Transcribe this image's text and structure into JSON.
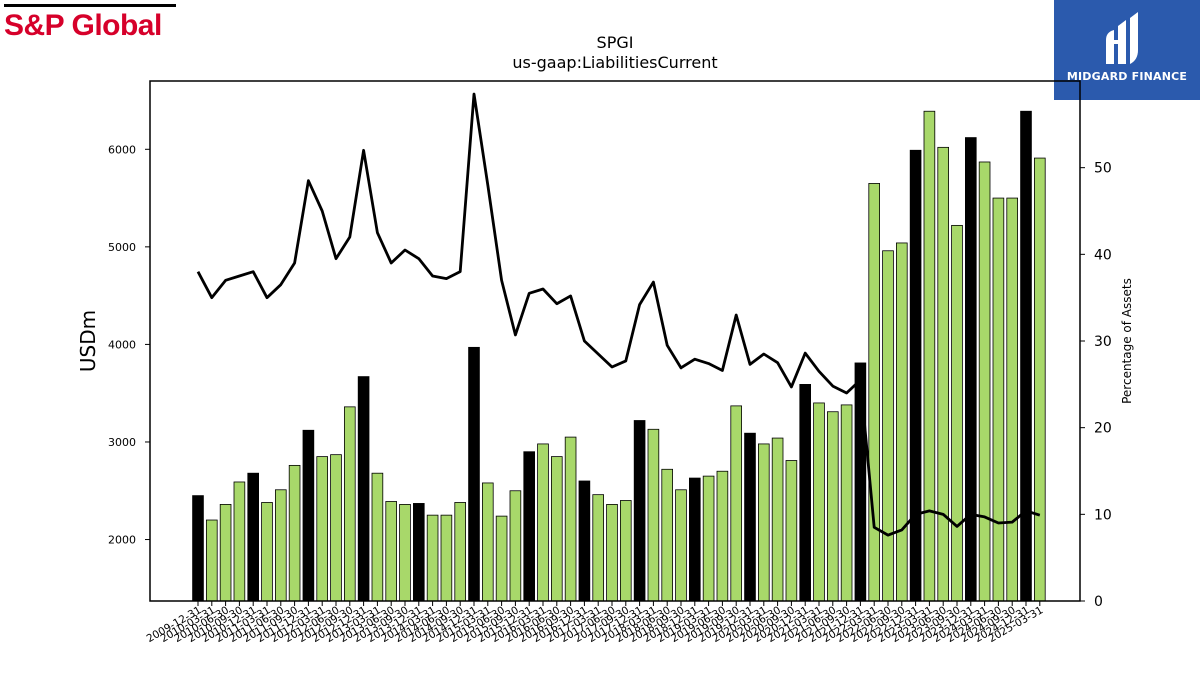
{
  "branding": {
    "left_logo_text": "S&P Global",
    "right_logo_text": "MIDGARD FINANCE",
    "left_logo_color": "#d6002a",
    "right_logo_bg": "#2b5aad"
  },
  "chart_data": {
    "type": "bar",
    "title": "SPGI",
    "subtitle": "us-gaap:LiabilitiesCurrent",
    "ylabel": "USDm",
    "y2label": "Percentage of Assets",
    "ylim": [
      1370,
      6700
    ],
    "y2lim": [
      0,
      60
    ],
    "yticks": [
      2000,
      3000,
      4000,
      5000,
      6000
    ],
    "y2ticks": [
      0,
      10,
      20,
      30,
      40,
      50
    ],
    "bar_colors": {
      "fiscal_year_end": "#000000",
      "quarter": "#a8d86a"
    },
    "line_color": "#000000",
    "categories": [
      "2009-12-31",
      "2010-03-31",
      "2010-06-30",
      "2010-09-30",
      "2010-12-31",
      "2011-03-31",
      "2011-06-30",
      "2011-09-30",
      "2011-12-31",
      "2012-03-31",
      "2012-06-30",
      "2012-09-30",
      "2012-12-31",
      "2013-03-31",
      "2013-06-30",
      "2013-09-30",
      "2013-12-31",
      "2014-03-31",
      "2014-06-30",
      "2014-09-30",
      "2014-12-31",
      "2015-03-31",
      "2015-06-30",
      "2015-09-30",
      "2015-12-31",
      "2016-03-31",
      "2016-06-30",
      "2016-09-30",
      "2016-12-31",
      "2017-03-31",
      "2017-06-30",
      "2017-09-30",
      "2017-12-31",
      "2018-03-31",
      "2018-06-30",
      "2018-09-30",
      "2018-12-31",
      "2019-03-31",
      "2019-06-30",
      "2019-09-30",
      "2019-12-31",
      "2020-03-31",
      "2020-06-30",
      "2020-09-30",
      "2020-12-31",
      "2021-03-31",
      "2021-06-30",
      "2021-09-30",
      "2021-12-31",
      "2022-03-31",
      "2022-06-30",
      "2022-09-30",
      "2022-12-31",
      "2023-03-31",
      "2023-06-30",
      "2023-09-30",
      "2023-12-31",
      "2024-03-31",
      "2024-06-30",
      "2024-09-30",
      "2024-12-31",
      "2025-03-31"
    ],
    "values": [
      2450,
      2200,
      2360,
      2590,
      2680,
      2380,
      2510,
      2760,
      3120,
      2850,
      2870,
      3360,
      3670,
      2680,
      2390,
      2360,
      2370,
      2250,
      2250,
      2380,
      3970,
      2580,
      2240,
      2500,
      2900,
      2980,
      2850,
      3050,
      2600,
      2460,
      2360,
      2400,
      3220,
      3130,
      2720,
      2510,
      2630,
      2650,
      2700,
      3370,
      3090,
      2980,
      3040,
      2810,
      3590,
      3400,
      3310,
      3380,
      3810,
      5650,
      4960,
      5040,
      5990,
      6390,
      6020,
      5220,
      6120,
      5870,
      5500,
      5500,
      6390,
      5910
    ],
    "fiscal_year_end": [
      true,
      false,
      false,
      false,
      true,
      false,
      false,
      false,
      true,
      false,
      false,
      false,
      true,
      false,
      false,
      false,
      true,
      false,
      false,
      false,
      true,
      false,
      false,
      false,
      true,
      false,
      false,
      false,
      true,
      false,
      false,
      false,
      true,
      false,
      false,
      false,
      true,
      false,
      false,
      false,
      true,
      false,
      false,
      false,
      true,
      false,
      false,
      false,
      true,
      false,
      false,
      false,
      true,
      false,
      false,
      false,
      true,
      false,
      false,
      false,
      true,
      false
    ],
    "pct_assets": [
      38.0,
      35.0,
      37.0,
      37.5,
      38.0,
      35.0,
      36.5,
      39.0,
      48.5,
      45.0,
      39.5,
      42.0,
      52.0,
      42.5,
      39.0,
      40.5,
      39.5,
      37.5,
      37.2,
      38.0,
      58.5,
      48.0,
      37.0,
      30.7,
      35.5,
      36.0,
      34.3,
      35.2,
      30.0,
      28.5,
      27.0,
      27.7,
      34.2,
      36.8,
      29.5,
      26.9,
      27.9,
      27.4,
      26.6,
      33.0,
      27.3,
      28.5,
      27.5,
      24.7,
      28.6,
      26.5,
      24.8,
      24.0,
      25.5,
      8.5,
      7.6,
      8.2,
      10.0,
      10.4,
      10.0,
      8.6,
      10.0,
      9.7,
      9.0,
      9.1,
      10.4,
      9.9
    ]
  }
}
